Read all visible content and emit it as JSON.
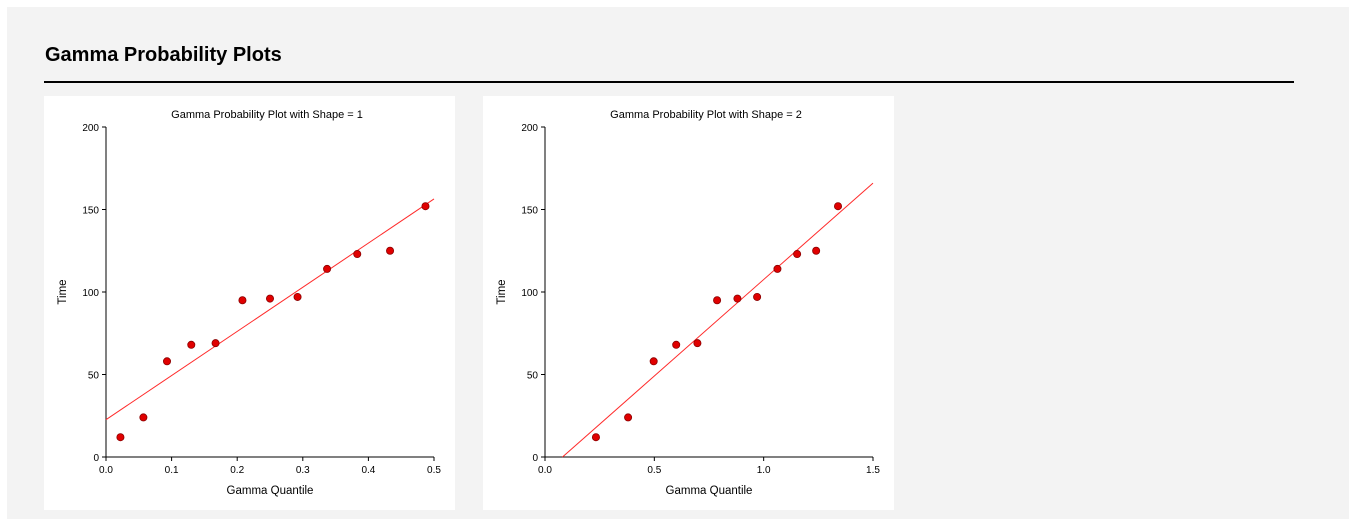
{
  "page": {
    "title": "Gamma Probability Plots"
  },
  "colors": {
    "point": "#e00000",
    "point_edge": "#8b0000",
    "fit_line": "#ff2a2a",
    "background": "#f3f3f3"
  },
  "chart_data": [
    {
      "type": "scatter",
      "title": "Gamma Probability Plot with Shape = 1",
      "xlabel": "Gamma Quantile",
      "ylabel": "Time",
      "xlim": [
        0.0,
        0.5
      ],
      "ylim": [
        0,
        200
      ],
      "xticks": [
        "0.0",
        "0.1",
        "0.2",
        "0.3",
        "0.4",
        "0.5"
      ],
      "yticks": [
        "0",
        "50",
        "100",
        "150",
        "200"
      ],
      "grid": false,
      "points": {
        "x": [
          0.022,
          0.057,
          0.093,
          0.13,
          0.167,
          0.208,
          0.25,
          0.292,
          0.337,
          0.383,
          0.433,
          0.487
        ],
        "y": [
          12,
          24,
          58,
          68,
          69,
          95,
          96,
          97,
          114,
          123,
          125,
          152
        ]
      },
      "fit_line": {
        "x": [
          0.0,
          0.5
        ],
        "y": [
          22.6,
          156.4
        ]
      }
    },
    {
      "type": "scatter",
      "title": "Gamma Probability Plot with Shape = 2",
      "xlabel": "Gamma Quantile",
      "ylabel": "Time",
      "xlim": [
        0.0,
        1.5
      ],
      "ylim": [
        0,
        200
      ],
      "xticks": [
        "0.0",
        "0.5",
        "1.0",
        "1.5"
      ],
      "yticks": [
        "0",
        "50",
        "100",
        "150",
        "200"
      ],
      "grid": false,
      "points": {
        "x": [
          0.233,
          0.38,
          0.497,
          0.6,
          0.697,
          0.787,
          0.88,
          0.97,
          1.063,
          1.153,
          1.24,
          1.34
        ],
        "y": [
          12,
          24,
          58,
          68,
          69,
          95,
          96,
          97,
          114,
          123,
          125,
          152
        ]
      },
      "fit_line": {
        "x": [
          0.08,
          1.5
        ],
        "y": [
          0,
          166
        ]
      }
    }
  ]
}
